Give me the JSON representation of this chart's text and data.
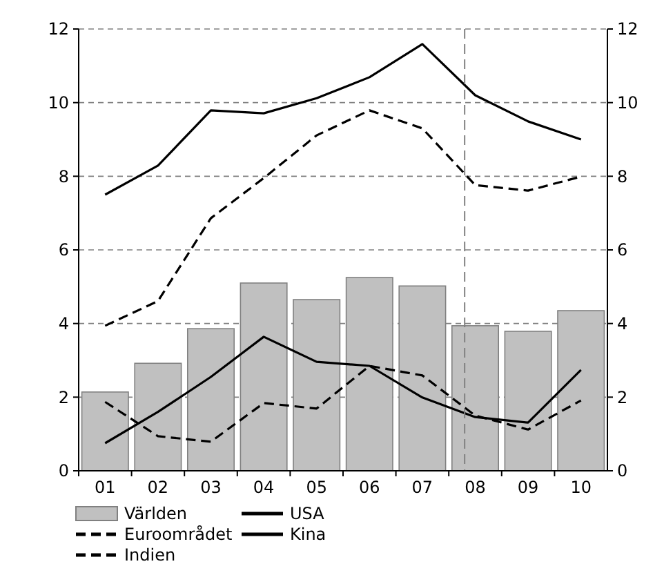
{
  "chart_data": {
    "type": "bar",
    "categories": [
      "01",
      "02",
      "03",
      "04",
      "05",
      "06",
      "07",
      "08",
      "09",
      "10"
    ],
    "series": [
      {
        "name": "Världen",
        "color": "#c0c0c0",
        "values": [
          2.14,
          2.92,
          3.86,
          5.1,
          4.65,
          5.25,
          5.02,
          3.94,
          3.79,
          4.35
        ]
      },
      {
        "name": "USA",
        "type": "line",
        "color": "#000000",
        "line_style": "solid",
        "values": [
          0.75,
          1.6,
          2.55,
          3.64,
          2.96,
          2.85,
          1.99,
          1.46,
          1.31,
          2.74
        ]
      },
      {
        "name": "Euroområdet",
        "type": "line",
        "color": "#000000",
        "line_style": "dashed",
        "values": [
          1.87,
          0.94,
          0.79,
          1.84,
          1.69,
          2.85,
          2.59,
          1.5,
          1.12,
          1.91
        ]
      },
      {
        "name": "Kina",
        "type": "line",
        "color": "#000000",
        "line_style": "solid",
        "values": [
          7.5,
          8.29,
          9.79,
          9.71,
          10.12,
          10.69,
          11.59,
          10.2,
          9.49,
          9.0
        ]
      },
      {
        "name": "Indien",
        "type": "line",
        "color": "#000000",
        "line_style": "dashed",
        "values": [
          3.94,
          4.61,
          6.86,
          7.95,
          9.11,
          9.79,
          9.3,
          7.76,
          7.61,
          7.99
        ]
      }
    ],
    "ylim": [
      0,
      12
    ],
    "yticks": [
      0,
      2,
      4,
      6,
      8,
      10,
      12
    ],
    "y2lim": [
      0,
      12
    ],
    "y2ticks": [
      0,
      2,
      4,
      6,
      8,
      10,
      12
    ],
    "grid": "y",
    "legend": "bottom",
    "marker": "none",
    "ref_lines": [
      {
        "axis": "x",
        "value": "08",
        "line_style": "dashed",
        "color": "#808080"
      }
    ]
  }
}
